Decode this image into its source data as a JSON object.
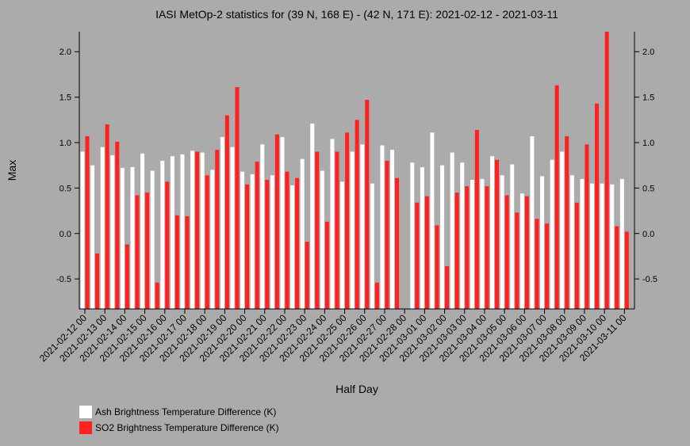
{
  "chart_data": {
    "type": "bar",
    "title": "IASI MetOp-2 statistics for (39 N, 168 E) - (42 N, 171 E): 2021-02-12 - 2021-03-11",
    "xlabel": "Half Day",
    "ylabel": "Max",
    "categories": [
      "2021-02-12 00",
      null,
      "2021-02-13 00",
      null,
      "2021-02-14 00",
      null,
      "2021-02-15 00",
      null,
      "2021-02-16 00",
      null,
      "2021-02-17 00",
      null,
      "2021-02-18 00",
      null,
      "2021-02-19 00",
      null,
      "2021-02-20 00",
      null,
      "2021-02-21 00",
      null,
      "2021-02-22 00",
      null,
      "2021-02-23 00",
      null,
      "2021-02-24 00",
      null,
      "2021-02-25 00",
      null,
      "2021-02-26 00",
      null,
      "2021-02-27 00",
      null,
      "2021-02-28 00",
      null,
      "2021-03-01 00",
      null,
      "2021-03-02 00",
      null,
      "2021-03-03 00",
      null,
      "2021-03-04 00",
      null,
      "2021-03-05 00",
      null,
      "2021-03-06 00",
      null,
      "2021-03-07 00",
      null,
      "2021-03-08 00",
      null,
      "2021-03-09 00",
      null,
      "2021-03-10 00",
      null,
      "2021-03-11 00"
    ],
    "series": [
      {
        "name": "Ash Brightness Temperature Difference (K)",
        "color": "#ffffff",
        "values": [
          0.9,
          0.75,
          0.95,
          0.86,
          0.72,
          0.73,
          0.88,
          0.69,
          0.8,
          0.85,
          0.87,
          0.91,
          0.89,
          0.7,
          1.06,
          0.95,
          0.68,
          0.65,
          0.98,
          0.64,
          1.06,
          0.53,
          0.82,
          1.21,
          0.69,
          1.04,
          0.57,
          0.9,
          0.98,
          0.55,
          0.97,
          0.92,
          null,
          0.78,
          0.73,
          1.11,
          0.75,
          0.89,
          0.78,
          0.59,
          0.6,
          0.85,
          0.64,
          0.76,
          0.44,
          1.07,
          0.63,
          0.81,
          0.9,
          0.64,
          0.6,
          0.55,
          0.55,
          0.54,
          0.6
        ]
      },
      {
        "name": "SO2 Brightness Temperature Difference (K)",
        "color": "#ff2020",
        "values": [
          1.07,
          -0.22,
          1.2,
          1.01,
          -0.12,
          0.42,
          0.45,
          -0.54,
          0.57,
          0.2,
          0.19,
          0.9,
          0.64,
          0.92,
          1.3,
          1.61,
          0.54,
          0.79,
          0.59,
          1.09,
          0.68,
          0.61,
          -0.09,
          0.9,
          0.13,
          0.9,
          1.11,
          1.25,
          1.47,
          -0.54,
          0.8,
          0.61,
          null,
          0.34,
          0.41,
          0.09,
          -0.36,
          0.45,
          0.52,
          1.14,
          0.52,
          0.81,
          0.42,
          0.23,
          0.41,
          0.16,
          0.11,
          1.63,
          1.07,
          0.34,
          0.98,
          1.43,
          2.22,
          0.08,
          0.02
        ]
      }
    ],
    "ylim": [
      -0.83,
      2.22
    ],
    "yticks": [
      -0.5,
      {
        "value": 0,
        "label": "0.0"
      },
      0.5,
      {
        "value": 1,
        "label": "1.0"
      },
      1.5,
      {
        "value": 2,
        "label": "2.0"
      }
    ]
  }
}
